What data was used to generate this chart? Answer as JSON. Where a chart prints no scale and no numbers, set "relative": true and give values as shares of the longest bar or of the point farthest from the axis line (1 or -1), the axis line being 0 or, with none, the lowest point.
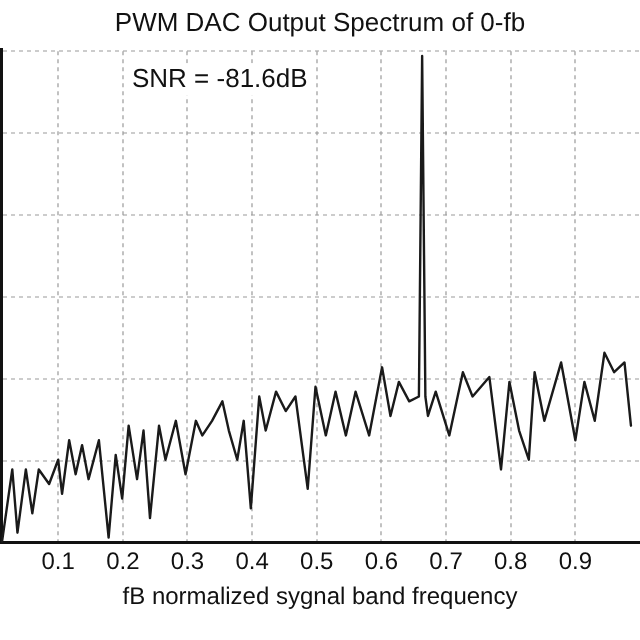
{
  "chart_data": {
    "type": "line",
    "title": "PWM DAC Output Spectrum of 0-fb",
    "xlabel": "fB normalized sygnal band frequency",
    "annotations": [
      "SNR = -81.6dB"
    ],
    "relative": true,
    "grid": true,
    "legend": false,
    "marker": "none",
    "line_style": "solid",
    "xlim": [
      0.01,
      1
    ],
    "xticks": [
      0.1,
      0.2,
      0.3,
      0.4,
      0.5,
      0.6,
      0.7,
      0.8,
      0.9
    ],
    "series": [
      {
        "color": "#1a1a1a",
        "x": [
          0.013,
          0.029,
          0.037,
          0.05,
          0.06,
          0.07,
          0.086,
          0.1,
          0.106,
          0.117,
          0.127,
          0.137,
          0.147,
          0.163,
          0.178,
          0.189,
          0.199,
          0.209,
          0.222,
          0.232,
          0.242,
          0.256,
          0.266,
          0.282,
          0.297,
          0.313,
          0.323,
          0.338,
          0.354,
          0.364,
          0.377,
          0.387,
          0.398,
          0.411,
          0.421,
          0.437,
          0.452,
          0.467,
          0.486,
          0.498,
          0.514,
          0.529,
          0.545,
          0.56,
          0.581,
          0.601,
          0.614,
          0.627,
          0.643,
          0.658,
          0.663,
          0.668,
          0.672,
          0.684,
          0.705,
          0.726,
          0.741,
          0.767,
          0.785,
          0.798,
          0.813,
          0.828,
          0.837,
          0.852,
          0.878,
          0.9,
          0.914,
          0.93,
          0.945,
          0.96,
          0.976,
          0.986
        ],
        "values": [
          0,
          0.15,
          0.02,
          0.15,
          0.06,
          0.15,
          0.12,
          0.17,
          0.1,
          0.21,
          0.14,
          0.2,
          0.13,
          0.21,
          0.01,
          0.18,
          0.09,
          0.24,
          0.13,
          0.23,
          0.05,
          0.24,
          0.17,
          0.25,
          0.14,
          0.25,
          0.22,
          0.25,
          0.29,
          0.23,
          0.17,
          0.25,
          0.07,
          0.3,
          0.23,
          0.31,
          0.27,
          0.3,
          0.11,
          0.32,
          0.22,
          0.31,
          0.22,
          0.31,
          0.22,
          0.36,
          0.26,
          0.33,
          0.29,
          0.3,
          1,
          0.3,
          0.26,
          0.31,
          0.22,
          0.35,
          0.3,
          0.34,
          0.15,
          0.33,
          0.23,
          0.17,
          0.35,
          0.25,
          0.37,
          0.21,
          0.33,
          0.25,
          0.39,
          0.35,
          0.37,
          0.24
        ]
      }
    ]
  }
}
